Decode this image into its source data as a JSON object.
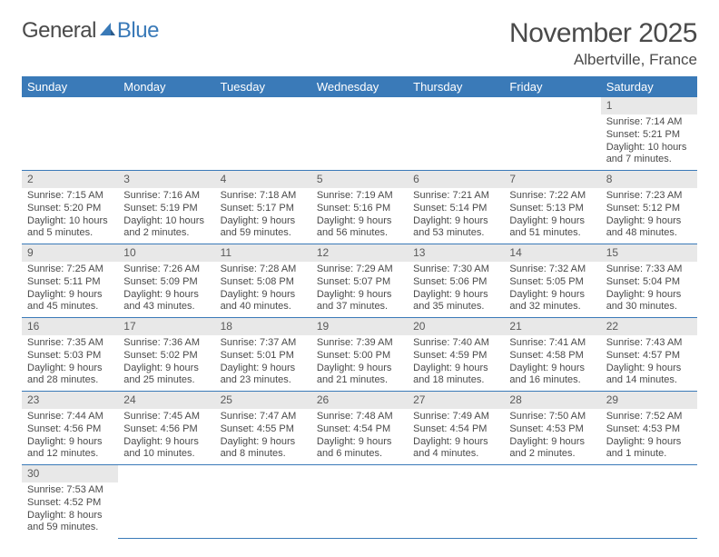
{
  "logo": {
    "text_general": "Genera",
    "text_l": "l",
    "text_blue": "Blue"
  },
  "title": "November 2025",
  "location": "Albertville, France",
  "colors": {
    "header_bg": "#3a7ab8",
    "header_fg": "#ffffff",
    "daynum_bg": "#e8e8e8",
    "border": "#3a7ab8",
    "text": "#4a4a4a"
  },
  "weekdays": [
    "Sunday",
    "Monday",
    "Tuesday",
    "Wednesday",
    "Thursday",
    "Friday",
    "Saturday"
  ],
  "weeks": [
    [
      null,
      null,
      null,
      null,
      null,
      null,
      {
        "n": "1",
        "sr": "Sunrise: 7:14 AM",
        "ss": "Sunset: 5:21 PM",
        "dl": "Daylight: 10 hours and 7 minutes."
      }
    ],
    [
      {
        "n": "2",
        "sr": "Sunrise: 7:15 AM",
        "ss": "Sunset: 5:20 PM",
        "dl": "Daylight: 10 hours and 5 minutes."
      },
      {
        "n": "3",
        "sr": "Sunrise: 7:16 AM",
        "ss": "Sunset: 5:19 PM",
        "dl": "Daylight: 10 hours and 2 minutes."
      },
      {
        "n": "4",
        "sr": "Sunrise: 7:18 AM",
        "ss": "Sunset: 5:17 PM",
        "dl": "Daylight: 9 hours and 59 minutes."
      },
      {
        "n": "5",
        "sr": "Sunrise: 7:19 AM",
        "ss": "Sunset: 5:16 PM",
        "dl": "Daylight: 9 hours and 56 minutes."
      },
      {
        "n": "6",
        "sr": "Sunrise: 7:21 AM",
        "ss": "Sunset: 5:14 PM",
        "dl": "Daylight: 9 hours and 53 minutes."
      },
      {
        "n": "7",
        "sr": "Sunrise: 7:22 AM",
        "ss": "Sunset: 5:13 PM",
        "dl": "Daylight: 9 hours and 51 minutes."
      },
      {
        "n": "8",
        "sr": "Sunrise: 7:23 AM",
        "ss": "Sunset: 5:12 PM",
        "dl": "Daylight: 9 hours and 48 minutes."
      }
    ],
    [
      {
        "n": "9",
        "sr": "Sunrise: 7:25 AM",
        "ss": "Sunset: 5:11 PM",
        "dl": "Daylight: 9 hours and 45 minutes."
      },
      {
        "n": "10",
        "sr": "Sunrise: 7:26 AM",
        "ss": "Sunset: 5:09 PM",
        "dl": "Daylight: 9 hours and 43 minutes."
      },
      {
        "n": "11",
        "sr": "Sunrise: 7:28 AM",
        "ss": "Sunset: 5:08 PM",
        "dl": "Daylight: 9 hours and 40 minutes."
      },
      {
        "n": "12",
        "sr": "Sunrise: 7:29 AM",
        "ss": "Sunset: 5:07 PM",
        "dl": "Daylight: 9 hours and 37 minutes."
      },
      {
        "n": "13",
        "sr": "Sunrise: 7:30 AM",
        "ss": "Sunset: 5:06 PM",
        "dl": "Daylight: 9 hours and 35 minutes."
      },
      {
        "n": "14",
        "sr": "Sunrise: 7:32 AM",
        "ss": "Sunset: 5:05 PM",
        "dl": "Daylight: 9 hours and 32 minutes."
      },
      {
        "n": "15",
        "sr": "Sunrise: 7:33 AM",
        "ss": "Sunset: 5:04 PM",
        "dl": "Daylight: 9 hours and 30 minutes."
      }
    ],
    [
      {
        "n": "16",
        "sr": "Sunrise: 7:35 AM",
        "ss": "Sunset: 5:03 PM",
        "dl": "Daylight: 9 hours and 28 minutes."
      },
      {
        "n": "17",
        "sr": "Sunrise: 7:36 AM",
        "ss": "Sunset: 5:02 PM",
        "dl": "Daylight: 9 hours and 25 minutes."
      },
      {
        "n": "18",
        "sr": "Sunrise: 7:37 AM",
        "ss": "Sunset: 5:01 PM",
        "dl": "Daylight: 9 hours and 23 minutes."
      },
      {
        "n": "19",
        "sr": "Sunrise: 7:39 AM",
        "ss": "Sunset: 5:00 PM",
        "dl": "Daylight: 9 hours and 21 minutes."
      },
      {
        "n": "20",
        "sr": "Sunrise: 7:40 AM",
        "ss": "Sunset: 4:59 PM",
        "dl": "Daylight: 9 hours and 18 minutes."
      },
      {
        "n": "21",
        "sr": "Sunrise: 7:41 AM",
        "ss": "Sunset: 4:58 PM",
        "dl": "Daylight: 9 hours and 16 minutes."
      },
      {
        "n": "22",
        "sr": "Sunrise: 7:43 AM",
        "ss": "Sunset: 4:57 PM",
        "dl": "Daylight: 9 hours and 14 minutes."
      }
    ],
    [
      {
        "n": "23",
        "sr": "Sunrise: 7:44 AM",
        "ss": "Sunset: 4:56 PM",
        "dl": "Daylight: 9 hours and 12 minutes."
      },
      {
        "n": "24",
        "sr": "Sunrise: 7:45 AM",
        "ss": "Sunset: 4:56 PM",
        "dl": "Daylight: 9 hours and 10 minutes."
      },
      {
        "n": "25",
        "sr": "Sunrise: 7:47 AM",
        "ss": "Sunset: 4:55 PM",
        "dl": "Daylight: 9 hours and 8 minutes."
      },
      {
        "n": "26",
        "sr": "Sunrise: 7:48 AM",
        "ss": "Sunset: 4:54 PM",
        "dl": "Daylight: 9 hours and 6 minutes."
      },
      {
        "n": "27",
        "sr": "Sunrise: 7:49 AM",
        "ss": "Sunset: 4:54 PM",
        "dl": "Daylight: 9 hours and 4 minutes."
      },
      {
        "n": "28",
        "sr": "Sunrise: 7:50 AM",
        "ss": "Sunset: 4:53 PM",
        "dl": "Daylight: 9 hours and 2 minutes."
      },
      {
        "n": "29",
        "sr": "Sunrise: 7:52 AM",
        "ss": "Sunset: 4:53 PM",
        "dl": "Daylight: 9 hours and 1 minute."
      }
    ],
    [
      {
        "n": "30",
        "sr": "Sunrise: 7:53 AM",
        "ss": "Sunset: 4:52 PM",
        "dl": "Daylight: 8 hours and 59 minutes."
      },
      null,
      null,
      null,
      null,
      null,
      null
    ]
  ]
}
